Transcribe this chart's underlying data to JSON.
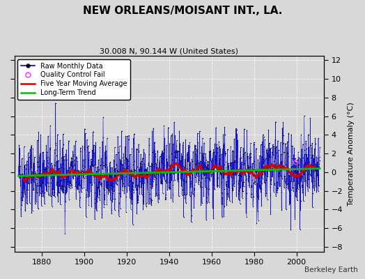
{
  "title": "NEW ORLEANS/MOISANT INT., LA.",
  "subtitle": "30.008 N, 90.144 W (United States)",
  "ylabel": "Temperature Anomaly (°C)",
  "credit": "Berkeley Earth",
  "year_start": 1869,
  "year_end": 2011,
  "ylim": [
    -8.5,
    12.5
  ],
  "yticks": [
    -8,
    -6,
    -4,
    -2,
    0,
    2,
    4,
    6,
    8,
    10,
    12
  ],
  "xticks": [
    1880,
    1900,
    1920,
    1940,
    1960,
    1980,
    2000
  ],
  "bg_color": "#d8d8d8",
  "plot_bg_color": "#d8d8d8",
  "line_color": "#0000cc",
  "ma_color": "#cc0000",
  "trend_color": "#00bb00",
  "qc_color": "#ff44ff",
  "seed": 42,
  "n_months": 1704,
  "noise_std": 2.0,
  "trend_slope": 0.003
}
